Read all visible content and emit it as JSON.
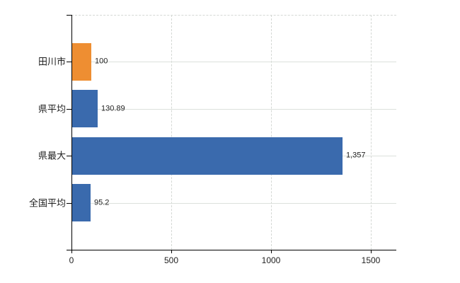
{
  "chart_data": {
    "type": "bar",
    "orientation": "horizontal",
    "title": "",
    "xlabel": "",
    "ylabel": "",
    "categories": [
      "田川市",
      "県平均",
      "県最大",
      "全国平均"
    ],
    "values": [
      100,
      130.89,
      1357,
      95.2
    ],
    "value_labels": [
      "100",
      "130.89",
      "1,357",
      "95.2"
    ],
    "bar_colors": [
      "#ee8e32",
      "#3a6aad",
      "#3a6aad",
      "#3a6aad"
    ],
    "highlight_index": 0,
    "xlim": [
      0,
      1628
    ],
    "x_ticks": [
      0,
      500,
      1000,
      1500
    ],
    "x_tick_labels": [
      "0",
      "500",
      "1000",
      "1500"
    ],
    "grid": true,
    "legend_position": "none"
  },
  "colors": {
    "highlight_bar": "#ee8e32",
    "default_bar": "#3a6aad",
    "grid_solid": "#dce0dc",
    "grid_dashed": "#d4d8d4",
    "axis": "#000000",
    "text": "#222222",
    "background": "#ffffff"
  }
}
